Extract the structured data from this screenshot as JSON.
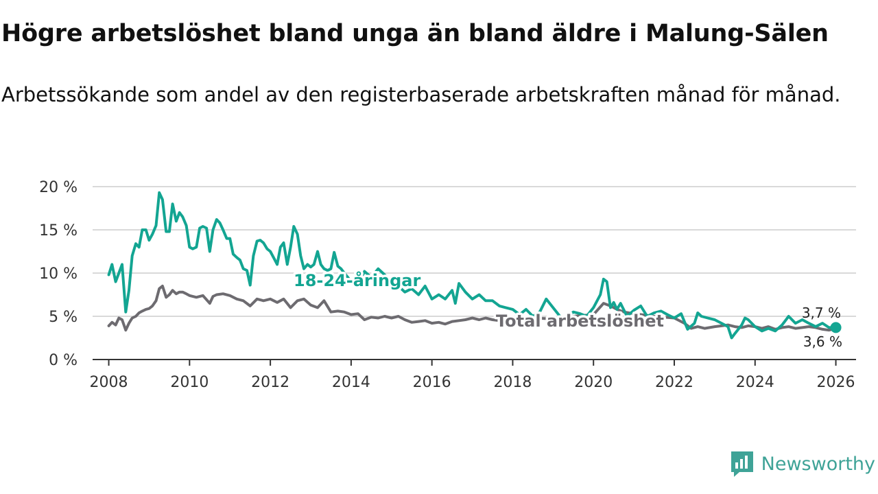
{
  "title": "Högre arbetslöshet bland unga än bland äldre i Malung-Sälen",
  "subtitle": "Arbetssökande som andel av den registerbaserade arbetskraften månad för månad.",
  "brand": {
    "name": "Newsworthy",
    "icon": "newsworthy-logo-icon",
    "color": "#3fa397"
  },
  "chart_data": {
    "type": "line",
    "title": "Högre arbetslöshet bland unga än bland äldre i Malung-Sälen",
    "xlabel": "",
    "ylabel": "",
    "xlim": [
      2007.6,
      2026.5
    ],
    "ylim": [
      0,
      20
    ],
    "grid": true,
    "x_ticks": [
      2008,
      2010,
      2012,
      2014,
      2016,
      2018,
      2020,
      2022,
      2024,
      2026
    ],
    "x_tick_labels": [
      "2008",
      "2010",
      "2012",
      "2014",
      "2016",
      "2018",
      "2020",
      "2022",
      "2024",
      "2026"
    ],
    "y_ticks": [
      0,
      5,
      10,
      15,
      20
    ],
    "y_tick_labels": [
      "0 %",
      "5 %",
      "10 %",
      "15 %",
      "20 %"
    ],
    "series": [
      {
        "name": "18-24-åringar",
        "label": "18-24-åringar",
        "color": "#13a592",
        "end_label": "3,7 %",
        "x": [
          2008.0,
          2008.08,
          2008.17,
          2008.25,
          2008.33,
          2008.42,
          2008.5,
          2008.58,
          2008.67,
          2008.75,
          2008.83,
          2008.92,
          2009.0,
          2009.08,
          2009.17,
          2009.25,
          2009.33,
          2009.42,
          2009.5,
          2009.58,
          2009.67,
          2009.75,
          2009.83,
          2009.92,
          2010.0,
          2010.08,
          2010.17,
          2010.25,
          2010.33,
          2010.42,
          2010.5,
          2010.58,
          2010.67,
          2010.75,
          2010.83,
          2010.92,
          2011.0,
          2011.08,
          2011.17,
          2011.25,
          2011.33,
          2011.42,
          2011.5,
          2011.58,
          2011.67,
          2011.75,
          2011.83,
          2011.92,
          2012.0,
          2012.08,
          2012.17,
          2012.25,
          2012.33,
          2012.42,
          2012.5,
          2012.58,
          2012.67,
          2012.75,
          2012.83,
          2012.92,
          2013.0,
          2013.08,
          2013.17,
          2013.25,
          2013.33,
          2013.42,
          2013.5,
          2013.58,
          2013.67,
          2013.75,
          2013.83,
          2013.92,
          2014.0,
          2014.17,
          2014.33,
          2014.5,
          2014.67,
          2014.83,
          2015.0,
          2015.17,
          2015.33,
          2015.5,
          2015.67,
          2015.83,
          2016.0,
          2016.17,
          2016.33,
          2016.5,
          2016.58,
          2016.67,
          2016.83,
          2017.0,
          2017.17,
          2017.33,
          2017.5,
          2017.67,
          2017.83,
          2018.0,
          2018.17,
          2018.33,
          2018.5,
          2018.67,
          2018.83,
          2019.0,
          2019.17,
          2019.33,
          2019.5,
          2019.67,
          2019.83,
          2020.0,
          2020.17,
          2020.25,
          2020.33,
          2020.42,
          2020.5,
          2020.58,
          2020.67,
          2020.83,
          2021.0,
          2021.17,
          2021.33,
          2021.5,
          2021.67,
          2021.83,
          2022.0,
          2022.17,
          2022.33,
          2022.5,
          2022.58,
          2022.67,
          2022.83,
          2023.0,
          2023.17,
          2023.33,
          2023.42,
          2023.5,
          2023.67,
          2023.75,
          2023.83,
          2024.0,
          2024.17,
          2024.33,
          2024.5,
          2024.67,
          2024.83,
          2025.0,
          2025.17,
          2025.33,
          2025.5,
          2025.67,
          2025.83,
          2026.0
        ],
        "y": [
          9.8,
          11.0,
          9.0,
          10.0,
          11.0,
          5.5,
          8.0,
          12.0,
          13.4,
          13.0,
          15.0,
          15.0,
          13.8,
          14.5,
          15.5,
          19.3,
          18.5,
          14.8,
          14.8,
          18.0,
          16.0,
          17.0,
          16.5,
          15.5,
          13.0,
          12.8,
          13.0,
          15.2,
          15.4,
          15.2,
          12.5,
          15.0,
          16.2,
          15.8,
          15.0,
          14.0,
          14.0,
          12.2,
          11.8,
          11.5,
          10.5,
          10.3,
          8.6,
          12.0,
          13.7,
          13.8,
          13.5,
          12.8,
          12.5,
          11.8,
          11.0,
          13.0,
          13.5,
          11.0,
          13.0,
          15.4,
          14.5,
          12.0,
          10.5,
          11.0,
          10.7,
          11.0,
          12.5,
          11.0,
          10.5,
          10.3,
          10.5,
          12.4,
          10.8,
          10.5,
          10.0,
          9.5,
          9.0,
          8.5,
          10.2,
          9.5,
          10.5,
          9.8,
          9.0,
          8.5,
          7.8,
          8.2,
          7.5,
          8.5,
          7.0,
          7.5,
          7.0,
          8.0,
          6.5,
          8.8,
          7.8,
          7.0,
          7.5,
          6.8,
          6.8,
          6.2,
          6.0,
          5.8,
          5.2,
          5.8,
          5.0,
          5.5,
          7.0,
          6.0,
          5.0,
          4.8,
          5.5,
          5.3,
          5.0,
          6.0,
          7.5,
          9.3,
          9.0,
          6.0,
          6.6,
          5.8,
          6.5,
          5.0,
          5.7,
          6.2,
          5.0,
          5.4,
          5.6,
          5.2,
          4.8,
          5.3,
          3.5,
          4.2,
          5.4,
          5.0,
          4.8,
          4.6,
          4.2,
          3.8,
          2.5,
          3.0,
          4.0,
          4.8,
          4.6,
          3.8,
          3.3,
          3.6,
          3.3,
          4.0,
          5.0,
          4.2,
          4.6,
          4.2,
          3.8,
          4.2,
          3.7,
          3.7
        ]
      },
      {
        "name": "Total arbetslöshet",
        "label": "Total arbetslöshet",
        "color": "#6d6b70",
        "end_label": "3,6 %",
        "x": [
          2008.0,
          2008.08,
          2008.17,
          2008.25,
          2008.33,
          2008.42,
          2008.5,
          2008.58,
          2008.67,
          2008.75,
          2008.83,
          2008.92,
          2009.0,
          2009.08,
          2009.17,
          2009.25,
          2009.33,
          2009.42,
          2009.5,
          2009.58,
          2009.67,
          2009.75,
          2009.83,
          2009.92,
          2010.0,
          2010.17,
          2010.33,
          2010.5,
          2010.58,
          2010.67,
          2010.83,
          2011.0,
          2011.17,
          2011.33,
          2011.5,
          2011.67,
          2011.83,
          2012.0,
          2012.17,
          2012.33,
          2012.5,
          2012.67,
          2012.83,
          2013.0,
          2013.17,
          2013.33,
          2013.5,
          2013.67,
          2013.83,
          2014.0,
          2014.17,
          2014.33,
          2014.5,
          2014.67,
          2014.83,
          2015.0,
          2015.17,
          2015.33,
          2015.5,
          2015.67,
          2015.83,
          2016.0,
          2016.17,
          2016.33,
          2016.5,
          2016.67,
          2016.83,
          2017.0,
          2017.17,
          2017.33,
          2017.5,
          2017.67,
          2017.83,
          2018.0,
          2018.5,
          2019.0,
          2019.5,
          2020.0,
          2020.25,
          2020.42,
          2020.58,
          2020.75,
          2021.0,
          2021.5,
          2022.0,
          2022.25,
          2022.42,
          2022.58,
          2022.75,
          2023.0,
          2023.17,
          2023.33,
          2023.5,
          2023.67,
          2023.83,
          2024.0,
          2024.17,
          2024.33,
          2024.5,
          2024.67,
          2024.83,
          2025.0,
          2025.17,
          2025.33,
          2025.5,
          2025.67,
          2025.83,
          2026.0
        ],
        "y": [
          3.9,
          4.3,
          4.0,
          4.8,
          4.6,
          3.4,
          4.2,
          4.8,
          5.0,
          5.4,
          5.6,
          5.8,
          5.9,
          6.2,
          6.8,
          8.2,
          8.5,
          7.2,
          7.5,
          8.0,
          7.6,
          7.8,
          7.8,
          7.6,
          7.4,
          7.2,
          7.4,
          6.5,
          7.3,
          7.5,
          7.6,
          7.4,
          7.0,
          6.8,
          6.2,
          7.0,
          6.8,
          7.0,
          6.6,
          7.0,
          6.0,
          6.8,
          7.0,
          6.3,
          6.0,
          6.8,
          5.5,
          5.6,
          5.5,
          5.2,
          5.3,
          4.6,
          4.9,
          4.8,
          5.0,
          4.8,
          5.0,
          4.6,
          4.3,
          4.4,
          4.5,
          4.2,
          4.3,
          4.1,
          4.4,
          4.5,
          4.6,
          4.8,
          4.6,
          4.8,
          4.6,
          4.5,
          4.4,
          4.6,
          4.8,
          4.7,
          5.0,
          5.2,
          6.5,
          6.2,
          5.8,
          5.5,
          5.3,
          5.0,
          4.8,
          4.2,
          3.6,
          3.8,
          3.6,
          3.8,
          3.9,
          4.0,
          3.8,
          3.7,
          3.9,
          3.8,
          3.6,
          3.8,
          3.5,
          3.7,
          3.8,
          3.6,
          3.7,
          3.8,
          3.7,
          3.5,
          3.4,
          3.6
        ]
      }
    ]
  }
}
